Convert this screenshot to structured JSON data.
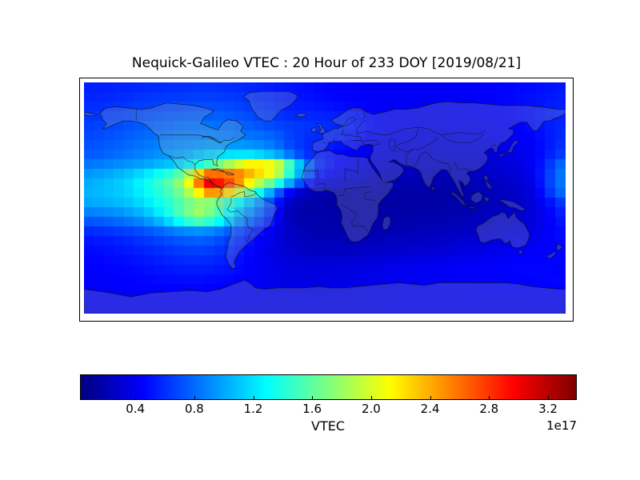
{
  "title": "Nequick-Galileo VTEC : 20 Hour of 233 DOY [2019/08/21]",
  "colorbar": {
    "label": "VTEC",
    "offset_label": "1e17",
    "tick_labels": [
      "0.4",
      "0.8",
      "1.2",
      "1.6",
      "2.0",
      "2.4",
      "2.8",
      "3.2"
    ],
    "tick_values": [
      0.4,
      0.8,
      1.2,
      1.6,
      2.0,
      2.4,
      2.8,
      3.2
    ],
    "orientation": "horizontal"
  },
  "colors": {
    "background": "#ffffff",
    "frame": "#000000",
    "coastline": "#111111",
    "land_tint": "rgba(165,172,184,0.25)"
  },
  "chart_data": {
    "type": "heatmap",
    "title": "Nequick-Galileo VTEC : 20 Hour of 233 DOY [2019/08/21]",
    "colorbar_label": "VTEC",
    "scale_offset": "1e17",
    "colormap": "jet",
    "projection": "equirectangular",
    "vmin": 0.03,
    "vmax": 3.39,
    "lon_range": [
      -180,
      180
    ],
    "lat_range": [
      -90,
      90
    ],
    "x_lon_centers": [
      -175,
      -165,
      -155,
      -145,
      -135,
      -125,
      -115,
      -105,
      -95,
      -85,
      -75,
      -65,
      -55,
      -45,
      -35,
      -25,
      -15,
      -5,
      5,
      15,
      25,
      35,
      45,
      55,
      65,
      75,
      85,
      95,
      105,
      115,
      125,
      135,
      145,
      155,
      165,
      175
    ],
    "y_lat_centers": [
      85,
      75,
      65,
      55,
      45,
      35,
      25,
      15,
      5,
      -5,
      -15,
      -25,
      -35,
      -45,
      -55,
      -65,
      -75,
      -85
    ],
    "values": [
      [
        0.55,
        0.55,
        0.56,
        0.57,
        0.58,
        0.59,
        0.6,
        0.6,
        0.61,
        0.61,
        0.6,
        0.59,
        0.57,
        0.55,
        0.53,
        0.51,
        0.49,
        0.47,
        0.45,
        0.44,
        0.43,
        0.42,
        0.42,
        0.42,
        0.42,
        0.42,
        0.42,
        0.43,
        0.43,
        0.44,
        0.45,
        0.46,
        0.47,
        0.48,
        0.5,
        0.52
      ],
      [
        0.58,
        0.59,
        0.6,
        0.62,
        0.64,
        0.65,
        0.66,
        0.67,
        0.68,
        0.68,
        0.67,
        0.65,
        0.62,
        0.59,
        0.56,
        0.53,
        0.51,
        0.49,
        0.47,
        0.45,
        0.44,
        0.43,
        0.42,
        0.42,
        0.42,
        0.42,
        0.42,
        0.43,
        0.43,
        0.44,
        0.45,
        0.46,
        0.48,
        0.5,
        0.52,
        0.55
      ],
      [
        0.62,
        0.63,
        0.65,
        0.67,
        0.69,
        0.71,
        0.73,
        0.74,
        0.75,
        0.75,
        0.74,
        0.72,
        0.68,
        0.64,
        0.61,
        0.58,
        0.57,
        0.56,
        0.55,
        0.53,
        0.5,
        0.46,
        0.43,
        0.42,
        0.41,
        0.41,
        0.41,
        0.41,
        0.42,
        0.43,
        0.44,
        0.45,
        0.47,
        0.49,
        0.52,
        0.56
      ],
      [
        0.66,
        0.68,
        0.7,
        0.73,
        0.76,
        0.79,
        0.81,
        0.83,
        0.84,
        0.84,
        0.83,
        0.8,
        0.76,
        0.72,
        0.68,
        0.65,
        0.63,
        0.61,
        0.59,
        0.56,
        0.52,
        0.47,
        0.43,
        0.41,
        0.4,
        0.39,
        0.39,
        0.39,
        0.4,
        0.41,
        0.42,
        0.43,
        0.45,
        0.48,
        0.52,
        0.57
      ],
      [
        0.7,
        0.72,
        0.75,
        0.78,
        0.81,
        0.84,
        0.86,
        0.88,
        0.89,
        0.89,
        0.88,
        0.87,
        0.86,
        0.85,
        0.78,
        0.66,
        0.6,
        0.57,
        0.54,
        0.51,
        0.47,
        0.42,
        0.39,
        0.37,
        0.36,
        0.35,
        0.35,
        0.35,
        0.36,
        0.37,
        0.38,
        0.4,
        0.42,
        0.45,
        0.5,
        0.58
      ],
      [
        0.73,
        0.76,
        0.79,
        0.83,
        0.87,
        0.91,
        0.94,
        0.98,
        1.03,
        1.08,
        1.1,
        1.08,
        1.05,
        0.97,
        0.86,
        0.72,
        0.6,
        0.53,
        0.49,
        0.45,
        0.42,
        0.38,
        0.35,
        0.33,
        0.32,
        0.31,
        0.31,
        0.31,
        0.32,
        0.33,
        0.34,
        0.36,
        0.38,
        0.42,
        0.5,
        0.62
      ],
      [
        0.85,
        0.88,
        0.92,
        0.96,
        1.0,
        1.06,
        1.12,
        1.22,
        1.38,
        1.6,
        1.85,
        2.1,
        2.35,
        2.3,
        2.15,
        1.55,
        0.95,
        0.6,
        0.5,
        0.42,
        0.36,
        0.31,
        0.29,
        0.27,
        0.26,
        0.25,
        0.25,
        0.26,
        0.27,
        0.28,
        0.3,
        0.32,
        0.35,
        0.42,
        0.55,
        0.8
      ],
      [
        1.0,
        1.05,
        1.1,
        1.18,
        1.3,
        1.45,
        1.62,
        1.9,
        2.7,
        3.3,
        3.0,
        2.8,
        2.35,
        2.1,
        1.8,
        1.25,
        0.78,
        0.48,
        0.4,
        0.33,
        0.29,
        0.26,
        0.24,
        0.22,
        0.21,
        0.2,
        0.2,
        0.21,
        0.22,
        0.24,
        0.26,
        0.28,
        0.32,
        0.38,
        0.6,
        0.85
      ],
      [
        1.05,
        1.08,
        1.12,
        1.18,
        1.28,
        1.4,
        1.55,
        1.75,
        2.15,
        2.65,
        2.55,
        2.1,
        1.65,
        1.25,
        0.8,
        0.45,
        0.26,
        0.2,
        0.18,
        0.17,
        0.17,
        0.17,
        0.17,
        0.17,
        0.16,
        0.16,
        0.16,
        0.17,
        0.18,
        0.2,
        0.22,
        0.25,
        0.28,
        0.35,
        0.55,
        0.8
      ],
      [
        1.0,
        1.02,
        1.05,
        1.1,
        1.18,
        1.3,
        1.42,
        1.58,
        1.72,
        1.62,
        1.42,
        1.2,
        1.0,
        0.8,
        0.48,
        0.22,
        0.17,
        0.16,
        0.15,
        0.15,
        0.15,
        0.15,
        0.15,
        0.15,
        0.15,
        0.15,
        0.16,
        0.17,
        0.18,
        0.2,
        0.22,
        0.24,
        0.27,
        0.32,
        0.42,
        0.6
      ],
      [
        0.8,
        0.83,
        0.87,
        0.93,
        1.02,
        1.16,
        1.38,
        1.62,
        1.88,
        1.72,
        1.42,
        1.1,
        0.86,
        0.7,
        0.45,
        0.2,
        0.17,
        0.17,
        0.17,
        0.17,
        0.17,
        0.17,
        0.17,
        0.17,
        0.17,
        0.18,
        0.18,
        0.19,
        0.2,
        0.22,
        0.24,
        0.26,
        0.29,
        0.33,
        0.4,
        0.52
      ],
      [
        0.6,
        0.62,
        0.65,
        0.68,
        0.73,
        0.79,
        0.86,
        0.93,
        0.97,
        0.93,
        0.83,
        0.7,
        0.58,
        0.47,
        0.36,
        0.26,
        0.21,
        0.19,
        0.18,
        0.18,
        0.18,
        0.18,
        0.19,
        0.19,
        0.2,
        0.21,
        0.22,
        0.23,
        0.24,
        0.26,
        0.28,
        0.3,
        0.32,
        0.35,
        0.4,
        0.48
      ],
      [
        0.5,
        0.52,
        0.54,
        0.57,
        0.6,
        0.64,
        0.68,
        0.71,
        0.73,
        0.71,
        0.65,
        0.57,
        0.48,
        0.4,
        0.33,
        0.27,
        0.24,
        0.22,
        0.22,
        0.22,
        0.22,
        0.23,
        0.24,
        0.25,
        0.26,
        0.27,
        0.28,
        0.29,
        0.31,
        0.32,
        0.34,
        0.36,
        0.38,
        0.4,
        0.43,
        0.47
      ],
      [
        0.46,
        0.47,
        0.49,
        0.51,
        0.53,
        0.56,
        0.59,
        0.61,
        0.62,
        0.61,
        0.57,
        0.51,
        0.45,
        0.39,
        0.34,
        0.3,
        0.28,
        0.27,
        0.27,
        0.27,
        0.28,
        0.29,
        0.3,
        0.31,
        0.32,
        0.33,
        0.34,
        0.35,
        0.37,
        0.38,
        0.4,
        0.41,
        0.43,
        0.44,
        0.45,
        0.46
      ],
      [
        0.44,
        0.45,
        0.46,
        0.47,
        0.49,
        0.51,
        0.53,
        0.54,
        0.55,
        0.54,
        0.52,
        0.48,
        0.44,
        0.4,
        0.37,
        0.35,
        0.34,
        0.34,
        0.34,
        0.35,
        0.36,
        0.37,
        0.38,
        0.39,
        0.4,
        0.41,
        0.42,
        0.43,
        0.44,
        0.44,
        0.45,
        0.45,
        0.46,
        0.46,
        0.46,
        0.45
      ],
      [
        0.44,
        0.44,
        0.45,
        0.45,
        0.46,
        0.47,
        0.47,
        0.48,
        0.48,
        0.47,
        0.46,
        0.44,
        0.42,
        0.4,
        0.38,
        0.37,
        0.36,
        0.36,
        0.36,
        0.37,
        0.38,
        0.38,
        0.39,
        0.4,
        0.41,
        0.41,
        0.42,
        0.43,
        0.43,
        0.44,
        0.44,
        0.45,
        0.45,
        0.45,
        0.46,
        0.46
      ],
      [
        0.42,
        0.42,
        0.42,
        0.43,
        0.43,
        0.43,
        0.44,
        0.44,
        0.44,
        0.43,
        0.43,
        0.42,
        0.41,
        0.4,
        0.39,
        0.38,
        0.38,
        0.38,
        0.38,
        0.38,
        0.39,
        0.39,
        0.4,
        0.4,
        0.41,
        0.41,
        0.41,
        0.42,
        0.42,
        0.42,
        0.42,
        0.43,
        0.43,
        0.43,
        0.43,
        0.43
      ],
      [
        0.4,
        0.4,
        0.4,
        0.4,
        0.4,
        0.4,
        0.4,
        0.4,
        0.4,
        0.4,
        0.4,
        0.4,
        0.39,
        0.39,
        0.39,
        0.39,
        0.39,
        0.39,
        0.39,
        0.39,
        0.39,
        0.39,
        0.39,
        0.4,
        0.4,
        0.4,
        0.4,
        0.4,
        0.4,
        0.4,
        0.4,
        0.4,
        0.4,
        0.4,
        0.4,
        0.4
      ]
    ]
  }
}
